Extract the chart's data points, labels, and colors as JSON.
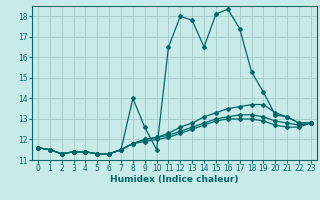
{
  "background_color": "#c8eae8",
  "grid_color": "#a8cece",
  "line_color": "#006868",
  "xlabel": "Humidex (Indice chaleur)",
  "xlim": [
    -0.5,
    23.5
  ],
  "ylim": [
    11,
    18.5
  ],
  "yticks": [
    11,
    12,
    13,
    14,
    15,
    16,
    17,
    18
  ],
  "xticks": [
    0,
    1,
    2,
    3,
    4,
    5,
    6,
    7,
    8,
    9,
    10,
    11,
    12,
    13,
    14,
    15,
    16,
    17,
    18,
    19,
    20,
    21,
    22,
    23
  ],
  "series": [
    [
      11.6,
      11.5,
      11.3,
      11.4,
      11.4,
      11.3,
      11.3,
      11.5,
      14.0,
      12.6,
      11.5,
      16.5,
      18.0,
      17.8,
      16.5,
      18.1,
      18.35,
      17.4,
      15.3,
      14.3,
      13.2,
      13.1,
      12.8,
      12.8
    ],
    [
      11.6,
      11.5,
      11.3,
      11.4,
      11.4,
      11.3,
      11.3,
      11.5,
      11.8,
      12.0,
      12.1,
      12.3,
      12.6,
      12.8,
      13.1,
      13.3,
      13.5,
      13.6,
      13.7,
      13.7,
      13.3,
      13.1,
      12.8,
      12.8
    ],
    [
      11.6,
      11.5,
      11.3,
      11.4,
      11.4,
      11.3,
      11.3,
      11.5,
      11.8,
      12.0,
      12.1,
      12.2,
      12.4,
      12.6,
      12.8,
      13.0,
      13.1,
      13.2,
      13.2,
      13.1,
      12.9,
      12.8,
      12.7,
      12.8
    ],
    [
      11.6,
      11.5,
      11.3,
      11.4,
      11.4,
      11.3,
      11.3,
      11.5,
      11.8,
      11.9,
      12.0,
      12.1,
      12.3,
      12.5,
      12.7,
      12.9,
      13.0,
      13.0,
      13.0,
      12.9,
      12.7,
      12.6,
      12.6,
      12.8
    ]
  ]
}
